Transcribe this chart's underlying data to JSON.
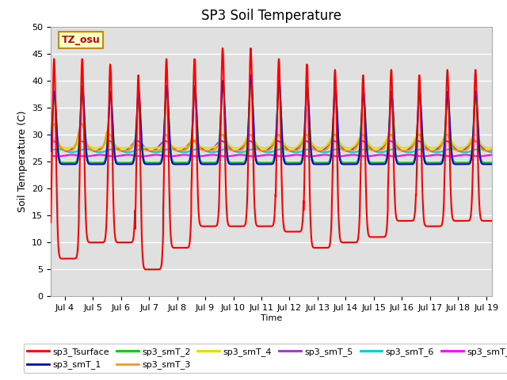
{
  "title": "SP3 Soil Temperature",
  "ylabel": "Soil Temperature (C)",
  "xlabel": "Time",
  "ylim": [
    0,
    50
  ],
  "xlim_days": [
    3.5,
    19.2
  ],
  "xticks": [
    4,
    5,
    6,
    7,
    8,
    9,
    10,
    11,
    12,
    13,
    14,
    15,
    16,
    17,
    18,
    19
  ],
  "xtick_labels": [
    "Jul 4",
    "Jul 5",
    "Jul 6",
    "Jul 7",
    "Jul 8",
    "Jul 9",
    "Jul 10",
    "Jul 11",
    "Jul 12",
    "Jul 13",
    "Jul 14",
    "Jul 15",
    "Jul 16",
    "Jul 17",
    "Jul 18",
    "Jul 19"
  ],
  "bg_color": "#e0e0e0",
  "fig_color": "#ffffff",
  "grid_color": "#ffffff",
  "tz_label": "TZ_osu",
  "tz_bg": "#ffffcc",
  "tz_border": "#cc8800",
  "tz_text_color": "#cc0000",
  "series_colors": {
    "sp3_Tsurface": "#ff0000",
    "sp3_smT_1": "#0000dd",
    "sp3_smT_2": "#00cc00",
    "sp3_smT_3": "#ff9900",
    "sp3_smT_4": "#dddd00",
    "sp3_smT_5": "#9933cc",
    "sp3_smT_6": "#00cccc",
    "sp3_smT_7": "#ff00ff"
  },
  "title_fontsize": 12,
  "label_fontsize": 9,
  "tick_fontsize": 8,
  "legend_fontsize": 8
}
